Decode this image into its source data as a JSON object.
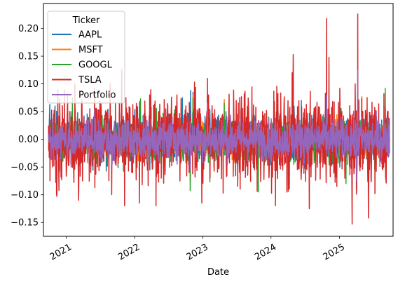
{
  "chart_data": {
    "type": "line",
    "xlabel": "Date",
    "ylabel": "",
    "title": "",
    "x_range": [
      "2020-09-01",
      "2025-10-15"
    ],
    "ylim": [
      -0.175,
      0.245
    ],
    "x_ticks": [
      "2021-01-01",
      "2022-01-01",
      "2023-01-01",
      "2024-01-01",
      "2025-01-01"
    ],
    "x_tick_labels": [
      "2021",
      "2022",
      "2023",
      "2024",
      "2025"
    ],
    "y_ticks": [
      -0.15,
      -0.1,
      -0.05,
      0.0,
      0.05,
      0.1,
      0.15,
      0.2
    ],
    "y_tick_labels": [
      "−0.15",
      "−0.10",
      "−0.05",
      "0.00",
      "0.05",
      "0.10",
      "0.15",
      "0.20"
    ],
    "grid": false,
    "legend": {
      "title": "Ticker",
      "placement": "top-left"
    },
    "series": [
      {
        "name": "AAPL",
        "color": "#1f77b4",
        "amplitude": 0.022,
        "spikes": [
          [
            "2020-10-05",
            0.063
          ],
          [
            "2020-11-02",
            0.06
          ],
          [
            "2021-01-27",
            -0.035
          ],
          [
            "2022-01-28",
            0.068
          ],
          [
            "2022-09-14",
            0.075
          ],
          [
            "2022-10-28",
            0.088
          ],
          [
            "2022-11-10",
            0.085
          ],
          [
            "2023-05-05",
            0.05
          ],
          [
            "2024-05-03",
            0.06
          ],
          [
            "2024-06-11",
            0.07
          ],
          [
            "2025-01-03",
            -0.05
          ],
          [
            "2025-04-03",
            -0.09
          ],
          [
            "2025-04-04",
            -0.07
          ]
        ]
      },
      {
        "name": "MSFT",
        "color": "#ff7f0e",
        "amplitude": 0.016,
        "spikes": [
          [
            "2021-01-27",
            0.05
          ],
          [
            "2022-04-27",
            0.055
          ],
          [
            "2022-10-26",
            -0.077
          ],
          [
            "2022-11-10",
            0.08
          ],
          [
            "2023-04-26",
            0.072
          ],
          [
            "2025-01-30",
            -0.06
          ],
          [
            "2025-04-09",
            0.1
          ],
          [
            "2025-05-01",
            0.077
          ]
        ]
      },
      {
        "name": "GOOGL",
        "color": "#2ca02c",
        "amplitude": 0.019,
        "spikes": [
          [
            "2021-02-03",
            0.075
          ],
          [
            "2022-02-02",
            0.073
          ],
          [
            "2022-10-26",
            -0.093
          ],
          [
            "2022-11-10",
            0.074
          ],
          [
            "2023-02-08",
            -0.077
          ],
          [
            "2023-04-26",
            0.065
          ],
          [
            "2023-10-25",
            -0.095
          ],
          [
            "2024-04-26",
            0.1
          ],
          [
            "2025-02-05",
            -0.08
          ],
          [
            "2025-04-09",
            0.095
          ],
          [
            "2025-09-03",
            0.092
          ]
        ]
      },
      {
        "name": "TSLA",
        "color": "#d62728",
        "amplitude": 0.038,
        "spikes": [
          [
            "2020-10-06",
            -0.075
          ],
          [
            "2020-11-17",
            0.09
          ],
          [
            "2021-01-08",
            0.08
          ],
          [
            "2021-03-08",
            -0.11
          ],
          [
            "2021-10-25",
            0.125
          ],
          [
            "2021-11-09",
            -0.12
          ],
          [
            "2022-01-27",
            -0.115
          ],
          [
            "2022-03-23",
            0.08
          ],
          [
            "2022-04-26",
            -0.12
          ],
          [
            "2022-05-24",
            -0.07
          ],
          [
            "2022-10-20",
            -0.06
          ],
          [
            "2022-12-27",
            -0.115
          ],
          [
            "2023-01-26",
            0.11
          ],
          [
            "2023-02-01",
            0.08
          ],
          [
            "2023-04-20",
            -0.097
          ],
          [
            "2023-07-20",
            -0.09
          ],
          [
            "2023-10-19",
            -0.094
          ],
          [
            "2024-01-25",
            -0.12
          ],
          [
            "2024-04-23",
            0.12
          ],
          [
            "2024-04-29",
            0.153
          ],
          [
            "2024-07-24",
            -0.125
          ],
          [
            "2024-10-24",
            0.218
          ],
          [
            "2024-11-06",
            0.148
          ],
          [
            "2024-12-18",
            -0.085
          ],
          [
            "2025-03-10",
            -0.153
          ],
          [
            "2025-03-26",
            0.1
          ],
          [
            "2025-04-09",
            0.226
          ],
          [
            "2025-04-21",
            -0.057
          ],
          [
            "2025-06-05",
            -0.142
          ],
          [
            "2025-09-15",
            0.05
          ]
        ]
      },
      {
        "name": "Portfolio",
        "color": "#9467bd",
        "amplitude": 0.018,
        "spikes": [
          [
            "2021-01-27",
            -0.05
          ],
          [
            "2022-10-27",
            -0.055
          ],
          [
            "2023-01-26",
            0.065
          ],
          [
            "2024-10-24",
            0.08
          ],
          [
            "2025-04-03",
            -0.075
          ],
          [
            "2025-04-09",
            0.125
          ]
        ]
      }
    ]
  }
}
